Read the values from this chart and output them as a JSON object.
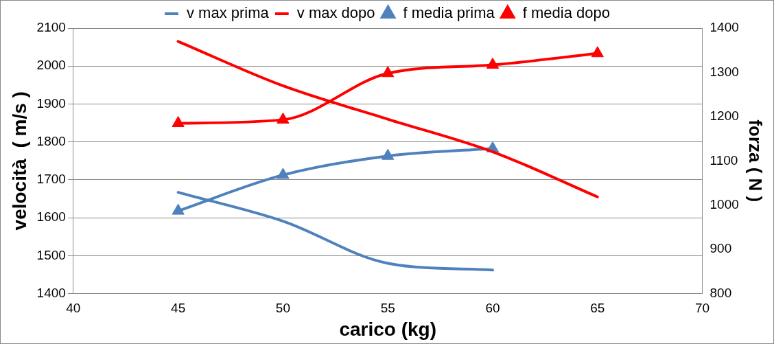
{
  "chart_data": {
    "type": "line",
    "xlabel": "carico (kg)",
    "ylabel": "velocità  ( m/s )",
    "y2label": "forza ( N )",
    "xlim": [
      40,
      70
    ],
    "xticks": [
      40,
      45,
      50,
      55,
      60,
      65,
      70
    ],
    "ylim": [
      1400,
      2100
    ],
    "yticks": [
      1400,
      1500,
      1600,
      1700,
      1800,
      1900,
      2000,
      2100
    ],
    "y2lim": [
      800,
      1400
    ],
    "y2ticks": [
      800,
      900,
      1000,
      1100,
      1200,
      1300,
      1400
    ],
    "grid": "y",
    "legend": "top",
    "line_style": "solid",
    "series": [
      {
        "name": "v max prima",
        "color": "#4f81bd",
        "marker": "none",
        "x": [
          45,
          50,
          55,
          60
        ],
        "values": [
          1667,
          1591,
          1480,
          1462
        ]
      },
      {
        "name": "v max dopo",
        "color": "#ff0000",
        "marker": "none",
        "x": [
          45,
          50,
          55,
          60,
          65
        ],
        "values": [
          2065,
          1948,
          1860,
          1774,
          1655
        ]
      },
      {
        "name": "f media prima",
        "color": "#4f81bd",
        "marker": "triangle",
        "axis": "y2",
        "x": [
          45,
          50,
          55,
          60
        ],
        "values": [
          987,
          1068,
          1111,
          1128
        ]
      },
      {
        "name": "f media dopo",
        "color": "#ff0000",
        "marker": "triangle",
        "axis": "y2",
        "x": [
          45,
          50,
          55,
          60,
          65
        ],
        "values": [
          1185,
          1193,
          1298,
          1317,
          1343
        ]
      }
    ]
  }
}
